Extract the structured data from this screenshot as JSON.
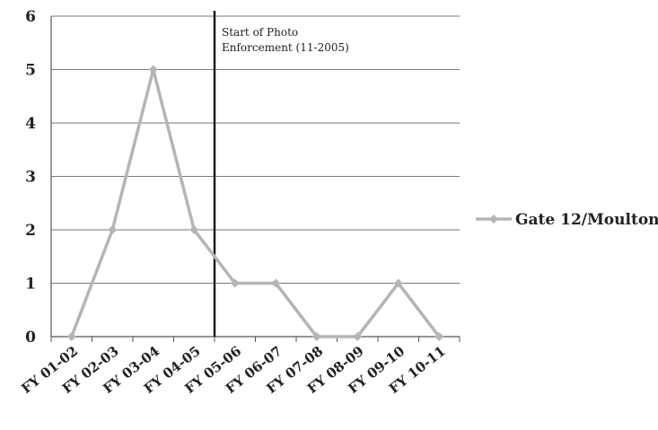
{
  "chart_data": {
    "type": "line",
    "categories": [
      "FY 01-02",
      "FY 02-03",
      "FY 03-04",
      "FY 04-05",
      "FY 05-06",
      "FY 06-07",
      "FY 07-08",
      "FY 08-09",
      "FY 09-10",
      "FY 10-11"
    ],
    "series": [
      {
        "name": "Gate 12/Moulton",
        "values": [
          0,
          2,
          5,
          2,
          1,
          1,
          0,
          0,
          1,
          0
        ],
        "color": "#b5b5b5"
      }
    ],
    "ylim": [
      0,
      6
    ],
    "yticks": [
      "0",
      "1",
      "2",
      "3",
      "4",
      "5",
      "6"
    ],
    "grid": true,
    "legend_position": "right",
    "annotation": {
      "lines": [
        "Start of Photo",
        "Enforcement (11-2005)"
      ],
      "between_categories": [
        "FY 04-05",
        "FY 05-06"
      ],
      "line_color": "#111111"
    }
  }
}
